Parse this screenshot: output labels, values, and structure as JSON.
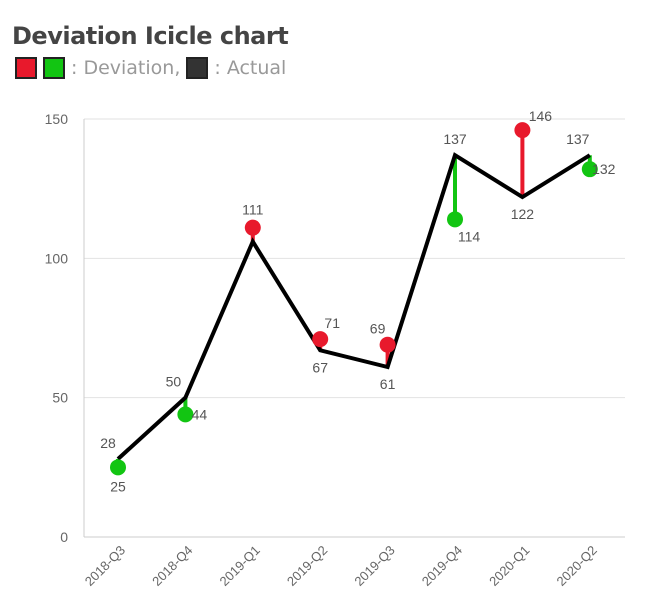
{
  "chart_data": {
    "type": "line",
    "title": "Deviation Icicle chart",
    "legend": {
      "deviation_label": ": Deviation,",
      "actual_label": ": Actual",
      "placement": "top-left"
    },
    "colors": {
      "above": "#e8192c",
      "below": "#12c512",
      "actual": "#000000",
      "legend_actual": "#333333"
    },
    "categories": [
      "2018-Q3",
      "2018-Q4",
      "2019-Q1",
      "2019-Q2",
      "2019-Q3",
      "2019-Q4",
      "2020-Q1",
      "2020-Q2"
    ],
    "series": [
      {
        "name": "Actual",
        "values": [
          28,
          50,
          106,
          67,
          61,
          137,
          122,
          137
        ],
        "labels_shown": [
          true,
          true,
          false,
          true,
          true,
          true,
          true,
          true
        ]
      },
      {
        "name": "Deviation",
        "values": [
          25,
          44,
          111,
          71,
          69,
          114,
          146,
          132
        ]
      }
    ],
    "ylim": [
      0,
      150
    ],
    "yticks": [
      0,
      50,
      100,
      150
    ],
    "grid": "horizontal"
  }
}
